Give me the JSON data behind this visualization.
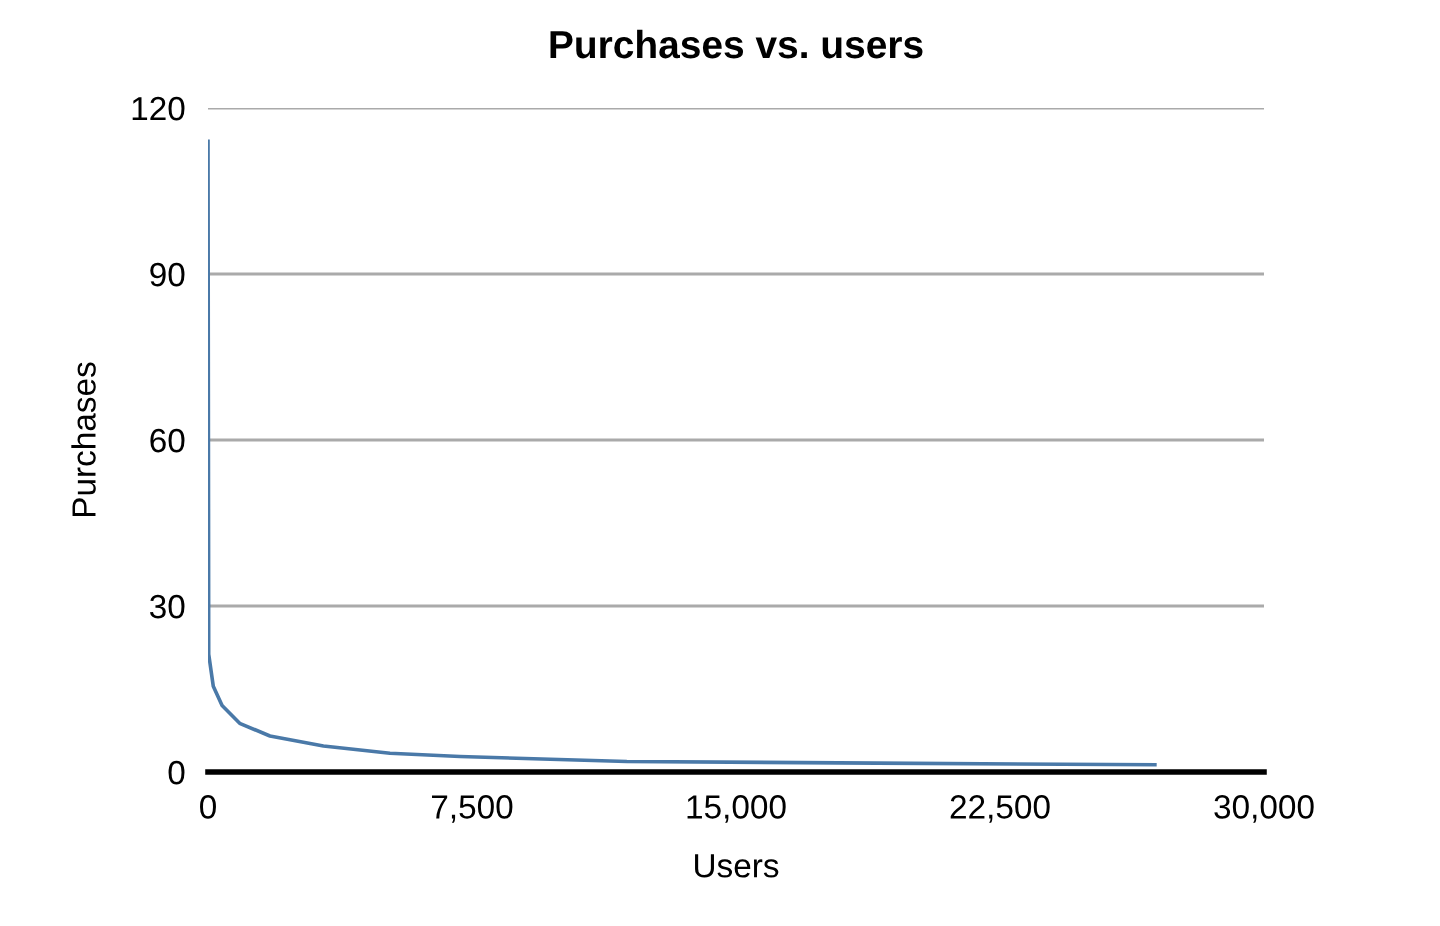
{
  "chart_data": {
    "type": "line",
    "title": "Purchases vs. users",
    "xlabel": "Users",
    "ylabel": "Purchases",
    "series": [
      {
        "color": "#4a79a8",
        "x": [
          0,
          20,
          150,
          400,
          900,
          1760,
          3280,
          5170,
          7160,
          11900,
          19000,
          26900
        ],
        "values": [
          114,
          21.3,
          15.5,
          12,
          8.8,
          6.5,
          4.7,
          3.4,
          2.8,
          1.9,
          1.6,
          1.3
        ]
      }
    ],
    "xlim": [
      0,
      30000
    ],
    "xticks": [
      {
        "value": 0,
        "label": "0"
      },
      {
        "value": 7500,
        "label": "7,500"
      },
      {
        "value": 15000,
        "label": "15,000"
      },
      {
        "value": 22500,
        "label": "22,500"
      },
      {
        "value": 30000,
        "label": "30,000"
      }
    ],
    "ylim": [
      0,
      120
    ],
    "yticks": [
      0,
      30,
      60,
      90,
      120
    ],
    "grid": "y",
    "legend": false,
    "marker": "none",
    "line_style": "solid"
  }
}
